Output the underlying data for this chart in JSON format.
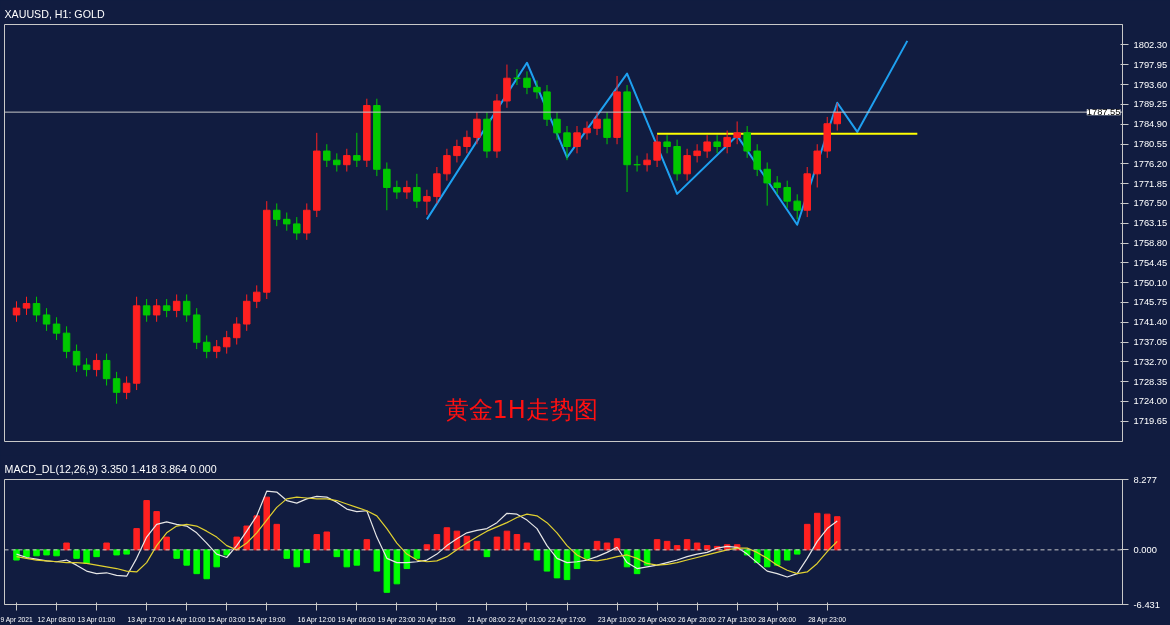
{
  "chart_data": [
    {
      "type": "candlestick",
      "title": "XAUUSD, H1: GOLD",
      "annotations": [
        "黄金1H走势图"
      ],
      "categories": [
        null,
        null,
        null,
        null,
        null,
        null,
        null,
        null,
        null,
        null,
        null,
        null,
        null,
        null,
        null,
        null,
        null,
        null,
        null,
        null,
        null,
        null,
        null,
        null,
        null,
        null,
        null,
        null,
        null,
        null,
        null,
        null,
        null,
        null,
        null,
        null,
        null,
        null,
        null,
        null,
        null,
        null,
        null,
        null,
        null,
        null,
        null,
        null,
        null,
        null,
        null,
        null,
        null,
        null,
        null,
        null,
        null,
        null,
        null,
        null,
        null,
        null,
        null,
        null,
        null,
        null,
        null,
        null,
        null,
        null,
        null,
        null,
        null,
        null,
        null,
        null,
        null,
        null,
        null,
        null,
        null,
        null,
        null,
        null,
        null,
        null,
        null,
        null,
        null,
        null,
        null,
        null,
        null,
        null,
        null,
        null,
        null,
        null,
        null,
        null,
        null,
        null,
        null,
        null,
        null,
        null,
        null,
        null,
        null,
        null,
        null
      ],
      "ohlc": [
        [
          1743,
          1746,
          1741.5,
          1744.5
        ],
        [
          1744.5,
          1747,
          1743,
          1745.5
        ],
        [
          1745.5,
          1747,
          1741.5,
          1743
        ],
        [
          1743,
          1744.5,
          1739.5,
          1741
        ],
        [
          1741,
          1742.5,
          1737.5,
          1739
        ],
        [
          1739,
          1740.5,
          1733.5,
          1735
        ],
        [
          1735,
          1736.5,
          1730.5,
          1732
        ],
        [
          1732,
          1733.5,
          1729.5,
          1731
        ],
        [
          1731,
          1734.5,
          1729.5,
          1733
        ],
        [
          1733,
          1734.5,
          1727.5,
          1729
        ],
        [
          1729,
          1730.5,
          1723.5,
          1726
        ],
        [
          1726,
          1729.5,
          1724.5,
          1728
        ],
        [
          1728,
          1747,
          1726.5,
          1745
        ],
        [
          1745,
          1746.5,
          1741.5,
          1743
        ],
        [
          1743,
          1746.5,
          1741.5,
          1745
        ],
        [
          1745,
          1746.5,
          1742.5,
          1744
        ],
        [
          1744,
          1747.5,
          1742.5,
          1746
        ],
        [
          1746,
          1747.5,
          1741.5,
          1743
        ],
        [
          1743,
          1744.5,
          1735.5,
          1737
        ],
        [
          1737,
          1738.5,
          1733.5,
          1735
        ],
        [
          1735,
          1737.5,
          1733.5,
          1736
        ],
        [
          1736,
          1739.5,
          1734.5,
          1738
        ],
        [
          1738,
          1742.5,
          1736.5,
          1741
        ],
        [
          1741,
          1747.5,
          1739.5,
          1746
        ],
        [
          1746,
          1749.5,
          1744.5,
          1748
        ],
        [
          1748,
          1768,
          1746.5,
          1766
        ],
        [
          1766,
          1767.5,
          1762.5,
          1764
        ],
        [
          1764,
          1765.5,
          1761.5,
          1763
        ],
        [
          1763,
          1764.5,
          1759.5,
          1761
        ],
        [
          1761,
          1767.5,
          1759.5,
          1766
        ],
        [
          1766,
          1783,
          1764.5,
          1779
        ],
        [
          1779,
          1780.5,
          1775.5,
          1777
        ],
        [
          1777,
          1778.5,
          1774.5,
          1776
        ],
        [
          1776,
          1779.5,
          1774.5,
          1778
        ],
        [
          1778,
          1783,
          1775.5,
          1777
        ],
        [
          1777,
          1790.5,
          1775.5,
          1789
        ],
        [
          1789,
          1790.5,
          1773.5,
          1775
        ],
        [
          1775,
          1776.5,
          1766,
          1771
        ],
        [
          1771,
          1772.5,
          1768.5,
          1770
        ],
        [
          1770,
          1772.5,
          1768.5,
          1771
        ],
        [
          1771,
          1774,
          1766.5,
          1768
        ],
        [
          1768,
          1770.5,
          1765,
          1769
        ],
        [
          1769,
          1775.5,
          1767.5,
          1774
        ],
        [
          1774,
          1779.5,
          1772.5,
          1778
        ],
        [
          1778,
          1781.5,
          1776.5,
          1780
        ],
        [
          1780,
          1783.5,
          1778.5,
          1782
        ],
        [
          1782,
          1787.5,
          1780.5,
          1786
        ],
        [
          1786,
          1787.5,
          1777.5,
          1779
        ],
        [
          1779,
          1791.5,
          1777.5,
          1790
        ],
        [
          1790,
          1798,
          1788.5,
          1795
        ],
        [
          1795,
          1797,
          1793.5,
          1795
        ],
        [
          1795,
          1796.5,
          1791.5,
          1793
        ],
        [
          1793,
          1794.5,
          1790.5,
          1792
        ],
        [
          1792,
          1793.5,
          1784.5,
          1786
        ],
        [
          1786,
          1787.5,
          1781.5,
          1783
        ],
        [
          1783,
          1784.5,
          1777,
          1780
        ],
        [
          1780,
          1784.5,
          1778.5,
          1783
        ],
        [
          1783,
          1785.5,
          1781.5,
          1784
        ],
        [
          1784,
          1787.5,
          1782.5,
          1786
        ],
        [
          1786,
          1787.5,
          1780.5,
          1782
        ],
        [
          1782,
          1795.5,
          1780.5,
          1792
        ],
        [
          1792,
          1793.5,
          1770,
          1776
        ],
        [
          1776,
          1778,
          1774.5,
          1776
        ],
        [
          1776,
          1778.5,
          1774.5,
          1777
        ],
        [
          1777,
          1782.5,
          1775.5,
          1781
        ],
        [
          1781,
          1782.5,
          1778.5,
          1780
        ],
        [
          1780,
          1781.5,
          1772.5,
          1774
        ],
        [
          1774,
          1779.5,
          1772.5,
          1778
        ],
        [
          1778,
          1780.5,
          1776.5,
          1779
        ],
        [
          1779,
          1782.5,
          1777.5,
          1781
        ],
        [
          1781,
          1782.5,
          1778.5,
          1780
        ],
        [
          1780,
          1783.5,
          1778.5,
          1782
        ],
        [
          1782,
          1785.5,
          1780.5,
          1783
        ],
        [
          1783,
          1784.5,
          1777.5,
          1779
        ],
        [
          1779,
          1780.5,
          1773.5,
          1775
        ],
        [
          1775,
          1776.5,
          1767,
          1772
        ],
        [
          1772,
          1773.5,
          1769.5,
          1771
        ],
        [
          1771,
          1772.5,
          1766.5,
          1768
        ],
        [
          1768,
          1769.5,
          1764,
          1766
        ],
        [
          1766,
          1775.5,
          1764.5,
          1774
        ],
        [
          1774,
          1780.5,
          1771,
          1779
        ],
        [
          1779,
          1786.5,
          1777.5,
          1785
        ],
        [
          1785,
          1789.5,
          1783.5,
          1787.5
        ],
        null,
        null,
        null,
        null,
        null,
        null,
        null,
        null,
        null,
        null,
        null,
        null,
        null,
        null,
        null,
        null,
        null,
        null,
        null,
        null,
        null,
        null,
        null,
        null,
        null,
        null,
        null,
        null
      ],
      "colors": [
        "#ff2020",
        "#ff2020",
        "#00c800",
        "#00c800",
        "#00c800",
        "#00c800",
        "#00c800",
        "#00c800",
        "#ff2020",
        "#00c800",
        "#00c800",
        "#ff2020",
        "#ff2020",
        "#00c800",
        "#ff2020",
        "#00c800",
        "#ff2020",
        "#00c800",
        "#00c800",
        "#00c800",
        "#ff2020",
        "#ff2020",
        "#ff2020",
        "#ff2020",
        "#ff2020",
        "#ff2020",
        "#00c800",
        "#00c800",
        "#00c800",
        "#ff2020",
        "#ff2020",
        "#00c800",
        "#00c800",
        "#ff2020",
        "#00c800",
        "#ff2020",
        "#00c800",
        "#00c800",
        "#00c800",
        "#ff2020",
        "#00c800",
        "#ff2020",
        "#ff2020",
        "#ff2020",
        "#ff2020",
        "#ff2020",
        "#ff2020",
        "#00c800",
        "#ff2020",
        "#ff2020",
        "#00c800",
        "#00c800",
        "#00c800",
        "#00c800",
        "#00c800",
        "#00c800",
        "#ff2020",
        "#ff2020",
        "#ff2020",
        "#00c800",
        "#ff2020",
        "#00c800",
        "#00c800",
        "#ff2020",
        "#ff2020",
        "#00c800",
        "#00c800",
        "#ff2020",
        "#ff2020",
        "#ff2020",
        "#00c800",
        "#ff2020",
        "#ff2020",
        "#00c800",
        "#00c800",
        "#00c800",
        "#00c800",
        "#00c800",
        "#00c800",
        "#ff2020",
        "#ff2020",
        "#ff2020",
        "#ff2020",
        null,
        null,
        null,
        null,
        null,
        null,
        null,
        null,
        null,
        null,
        null,
        null,
        null,
        null,
        null,
        null,
        null,
        null,
        null,
        null,
        null,
        null,
        null,
        null,
        null,
        null,
        null,
        null
      ],
      "series": [
        {
          "type": "line",
          "color": "#1ea0f0",
          "values": [
            null,
            null,
            null,
            null,
            null,
            null,
            null,
            null,
            null,
            null,
            null,
            null,
            null,
            null,
            null,
            null,
            null,
            null,
            null,
            null,
            null,
            null,
            null,
            null,
            null,
            null,
            null,
            null,
            null,
            null,
            null,
            null,
            null,
            null,
            null,
            null,
            null,
            null,
            null,
            null,
            null,
            1764.0,
            null,
            null,
            null,
            null,
            null,
            null,
            null,
            null,
            null,
            1798.4,
            null,
            null,
            null,
            1777.6,
            null,
            null,
            null,
            null,
            null,
            1796.0,
            null,
            null,
            null,
            null,
            1769.6,
            null,
            null,
            null,
            null,
            null,
            1782.4,
            null,
            null,
            null,
            null,
            null,
            1762.8,
            null,
            null,
            null,
            1789.6,
            null,
            1783.2,
            null,
            null,
            null,
            null,
            1803.2,
            null,
            null,
            null,
            null,
            null,
            null,
            null,
            null,
            null,
            null,
            null,
            null,
            null,
            null,
            null,
            null,
            null,
            null,
            null,
            null,
            null
          ]
        },
        {
          "type": "line",
          "color": "#ffff00",
          "values": [
            null,
            null,
            null,
            null,
            null,
            null,
            null,
            null,
            null,
            null,
            null,
            null,
            null,
            null,
            null,
            null,
            null,
            null,
            null,
            null,
            null,
            null,
            null,
            null,
            null,
            null,
            null,
            null,
            null,
            null,
            null,
            null,
            null,
            null,
            null,
            null,
            null,
            null,
            null,
            null,
            null,
            null,
            null,
            null,
            null,
            null,
            null,
            null,
            null,
            null,
            null,
            null,
            null,
            null,
            null,
            null,
            null,
            null,
            null,
            null,
            null,
            null,
            null,
            null,
            1782.8,
            1782.8,
            1782.8,
            1782.8,
            1782.8,
            1782.8,
            1782.8,
            1782.8,
            1782.8,
            1782.8,
            1782.8,
            1782.8,
            1782.8,
            1782.8,
            1782.8,
            1782.8,
            1782.8,
            1782.8,
            1782.8,
            1782.8,
            1782.8,
            1782.8,
            1782.8,
            1782.8,
            1782.8,
            1782.8,
            1782.8,
            null,
            null,
            null,
            null,
            null,
            null,
            null,
            null,
            null,
            null,
            null,
            null,
            null,
            null,
            null,
            null,
            null,
            null,
            null,
            null
          ]
        }
      ],
      "ref_lines": [
        {
          "axis": "y",
          "value": 1787.55,
          "label": "1787.55",
          "color": "#c8c8c8"
        }
      ],
      "ylim": [
        1715.2,
        1806.8
      ],
      "yticks": [
        {
          "value": 1802.3,
          "label": "1802.30"
        },
        1797.95,
        {
          "value": 1793.6,
          "label": "1793.60"
        },
        1789.25,
        {
          "value": 1784.9,
          "label": "1784.90"
        },
        1780.55,
        {
          "value": 1776.2,
          "label": "1776.20"
        },
        1771.85,
        {
          "value": 1767.5,
          "label": "1767.50"
        },
        1763.15,
        {
          "value": 1758.8,
          "label": "1758.80"
        },
        1754.45,
        {
          "value": 1750.1,
          "label": "1750.10"
        },
        1745.75,
        {
          "value": 1741.4,
          "label": "1741.40"
        },
        1737.05,
        {
          "value": 1732.7,
          "label": "1732.70"
        },
        1728.35,
        {
          "value": 1724,
          "label": "1724.00"
        },
        1719.65
      ],
      "tick_labels": "y"
    },
    {
      "type": "bar",
      "title": "MACD_DL(12,26,9) 3.350 1.418 3.864 0.000",
      "categories": [
        "9 Apr 2021",
        null,
        null,
        null,
        "12 Apr 08:00",
        null,
        null,
        null,
        "13 Apr 01:00",
        null,
        null,
        null,
        null,
        "13 Apr 17:00",
        null,
        null,
        null,
        "14 Apr 10:00",
        null,
        null,
        null,
        "15 Apr 03:00",
        null,
        null,
        null,
        "15 Apr 19:00",
        null,
        null,
        null,
        null,
        "16 Apr 12:00",
        null,
        null,
        null,
        "19 Apr 06:00",
        null,
        null,
        null,
        "19 Apr 23:00",
        null,
        null,
        null,
        "20 Apr 15:00",
        null,
        null,
        null,
        null,
        "21 Apr 08:00",
        null,
        null,
        null,
        "22 Apr 01:00",
        null,
        null,
        null,
        "22 Apr 17:00",
        null,
        null,
        null,
        null,
        "23 Apr 10:00",
        null,
        null,
        null,
        "26 Apr 04:00",
        null,
        null,
        null,
        "26 Apr 20:00",
        null,
        null,
        null,
        "27 Apr 13:00",
        null,
        null,
        null,
        "28 Apr 06:00",
        null,
        null,
        null,
        null,
        "28 Apr 23:00",
        null,
        null,
        null,
        null,
        null,
        null,
        null,
        null,
        null,
        null,
        null,
        null,
        null,
        null,
        null,
        null,
        null,
        null,
        null,
        null,
        null,
        null,
        null,
        null,
        null,
        null,
        null,
        null,
        null
      ],
      "series": [
        {
          "type": "bar",
          "values": [
            -1.2,
            -0.8,
            -0.7,
            -0.6,
            -0.7,
            0.8,
            -1.0,
            -1.6,
            -0.8,
            0.8,
            -0.6,
            -0.5,
            2.5,
            5.8,
            4.5,
            1.5,
            -1.0,
            -1.8,
            -2.8,
            -3.4,
            -2.0,
            -0.6,
            1.5,
            2.8,
            4.0,
            6.2,
            3.0,
            -1.0,
            -2.0,
            -1.5,
            1.8,
            2.1,
            -0.8,
            -2.0,
            -1.8,
            1.2,
            -2.5,
            -5.0,
            -4.0,
            -2.2,
            -1.0,
            0.6,
            1.8,
            2.6,
            2.2,
            1.6,
            1.0,
            -0.8,
            1.5,
            2.2,
            1.8,
            0.8,
            -1.2,
            -2.5,
            -3.3,
            -3.5,
            -2.2,
            -1.0,
            1.0,
            0.8,
            1.3,
            -2.0,
            -2.8,
            -1.8,
            1.2,
            1.0,
            0.5,
            1.2,
            0.8,
            0.5,
            0.4,
            0.6,
            0.6,
            -0.6,
            -1.5,
            -2.0,
            -1.8,
            -1.2,
            -0.5,
            3.0,
            4.3,
            4.2,
            3.9,
            null,
            null,
            null,
            null,
            null,
            null,
            null,
            null,
            null,
            null,
            null,
            null,
            null,
            null,
            null,
            null,
            null,
            null,
            null,
            null,
            null,
            null,
            null,
            null,
            null,
            null,
            null,
            null
          ],
          "colors": [
            "#00ff00",
            "#00ff00",
            "#00ff00",
            "#00ff00",
            "#00ff00",
            "#ff2020",
            "#00ff00",
            "#00ff00",
            "#00ff00",
            "#ff2020",
            "#00ff00",
            "#00ff00",
            "#ff2020",
            "#ff2020",
            "#ff2020",
            "#ff2020",
            "#00ff00",
            "#00ff00",
            "#00ff00",
            "#00ff00",
            "#00ff00",
            "#00ff00",
            "#ff2020",
            "#ff2020",
            "#ff2020",
            "#ff2020",
            "#ff2020",
            "#00ff00",
            "#00ff00",
            "#00ff00",
            "#ff2020",
            "#ff2020",
            "#00ff00",
            "#00ff00",
            "#00ff00",
            "#ff2020",
            "#00ff00",
            "#00ff00",
            "#00ff00",
            "#00ff00",
            "#00ff00",
            "#ff2020",
            "#ff2020",
            "#ff2020",
            "#ff2020",
            "#ff2020",
            "#ff2020",
            "#00ff00",
            "#ff2020",
            "#ff2020",
            "#ff2020",
            "#ff2020",
            "#00ff00",
            "#00ff00",
            "#00ff00",
            "#00ff00",
            "#00ff00",
            "#00ff00",
            "#ff2020",
            "#ff2020",
            "#ff2020",
            "#00ff00",
            "#00ff00",
            "#00ff00",
            "#ff2020",
            "#ff2020",
            "#ff2020",
            "#ff2020",
            "#ff2020",
            "#ff2020",
            "#ff2020",
            "#ff2020",
            "#ff2020",
            "#00ff00",
            "#00ff00",
            "#00ff00",
            "#00ff00",
            "#00ff00",
            "#00ff00",
            "#ff2020",
            "#ff2020",
            "#ff2020",
            "#ff2020",
            null,
            null,
            null,
            null,
            null,
            null,
            null,
            null,
            null,
            null,
            null,
            null,
            null,
            null,
            null,
            null,
            null,
            null,
            null,
            null,
            null,
            null,
            null,
            null,
            null,
            null,
            null,
            null
          ]
        },
        {
          "type": "line",
          "color": "#e6e6e6",
          "values": [
            -0.5,
            -0.9,
            -1.1,
            -1.3,
            -1.4,
            -1.2,
            -1.8,
            -2.5,
            -2.8,
            -2.7,
            -3.0,
            -3.1,
            -1.0,
            1.5,
            3.0,
            3.3,
            3.0,
            2.8,
            2.0,
            0.8,
            -0.5,
            -0.9,
            0.5,
            2.2,
            4.0,
            6.9,
            6.8,
            5.8,
            5.5,
            6.0,
            6.3,
            6.2,
            5.6,
            4.8,
            4.5,
            4.6,
            1.5,
            -1.0,
            -1.5,
            -1.5,
            -1.4,
            -1.2,
            -0.5,
            0.5,
            1.3,
            2.0,
            2.3,
            2.5,
            3.2,
            4.3,
            4.2,
            3.5,
            2.5,
            0.5,
            -1.0,
            -1.5,
            -1.4,
            -1.2,
            -0.8,
            -0.3,
            0.3,
            -1.5,
            -2.2,
            -2.0,
            -1.8,
            -1.5,
            -1.2,
            -0.8,
            -0.5,
            -0.3,
            0.2,
            0.4,
            0.3,
            -0.5,
            -1.5,
            -2.5,
            -2.8,
            -3.2,
            -2.8,
            -1.0,
            1.0,
            2.5,
            3.4,
            null,
            null,
            null,
            null,
            null,
            null,
            null,
            null,
            null,
            null,
            null,
            null,
            null,
            null,
            null,
            null,
            null,
            null,
            null,
            null,
            null,
            null,
            null,
            null,
            null,
            null,
            null,
            null
          ]
        },
        {
          "type": "line",
          "color": "#e0d030",
          "values": [
            -0.8,
            -1.0,
            -1.2,
            -1.3,
            -1.4,
            -1.5,
            -1.5,
            -1.6,
            -1.8,
            -2.0,
            -2.2,
            -2.5,
            -2.6,
            -1.5,
            0.5,
            2.0,
            2.8,
            3.0,
            2.8,
            2.2,
            1.5,
            0.5,
            0.0,
            0.8,
            2.0,
            3.5,
            5.0,
            6.0,
            6.2,
            6.1,
            6.0,
            6.0,
            5.8,
            5.4,
            5.0,
            4.6,
            4.0,
            2.5,
            0.8,
            -0.5,
            -1.2,
            -1.4,
            -1.3,
            -0.8,
            0.0,
            0.8,
            1.5,
            2.2,
            2.7,
            3.2,
            3.8,
            4.2,
            4.0,
            3.2,
            2.0,
            0.5,
            -0.6,
            -1.2,
            -1.3,
            -1.1,
            -0.8,
            -0.6,
            -1.0,
            -1.6,
            -1.8,
            -1.7,
            -1.5,
            -1.2,
            -0.9,
            -0.6,
            -0.3,
            0.0,
            0.2,
            0.2,
            -0.3,
            -1.0,
            -1.8,
            -2.4,
            -2.8,
            -2.6,
            -1.6,
            -0.2,
            1.0,
            null,
            null,
            null,
            null,
            null,
            null,
            null,
            null,
            null,
            null,
            null,
            null,
            null,
            null,
            null,
            null,
            null,
            null,
            null,
            null,
            null,
            null,
            null,
            null,
            null,
            null,
            null,
            null
          ]
        }
      ],
      "ref_lines": [
        {
          "axis": "y",
          "value": 0,
          "color": "#c8c8c8",
          "line_style": "dashed"
        }
      ],
      "ylim": [
        -6.431,
        8.277
      ],
      "yticks": [
        8.277,
        {
          "value": 0,
          "label": "0.000"
        },
        -6.431
      ]
    }
  ]
}
